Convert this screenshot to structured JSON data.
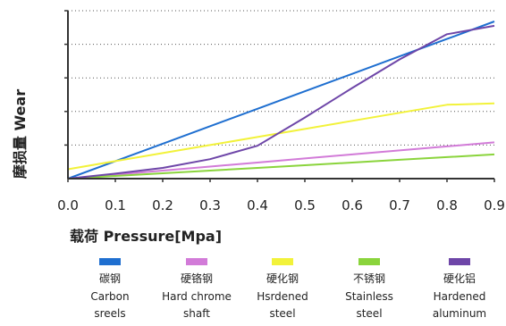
{
  "chart_data": {
    "type": "line",
    "xlabel": "载荷 Pressure[Mpa]",
    "ylabel": "摩损量 Wear",
    "xlim": [
      0.0,
      0.9
    ],
    "x_ticks": [
      "0.0",
      "0.1",
      "0.2",
      "0.3",
      "0.4",
      "0.5",
      "0.6",
      "0.7",
      "0.8",
      "0.9"
    ],
    "ylim": [
      0,
      5
    ],
    "grid": "horizontal-dotted",
    "legend_position": "bottom",
    "x": [
      0.0,
      0.1,
      0.2,
      0.3,
      0.4,
      0.5,
      0.6,
      0.7,
      0.8,
      0.9
    ],
    "series": [
      {
        "name_zh": "碳钢",
        "name": "Carbon sreels",
        "color": "#1f6fd0",
        "values": [
          0.0,
          0.52,
          1.04,
          1.56,
          2.08,
          2.6,
          3.12,
          3.64,
          4.16,
          4.68
        ]
      },
      {
        "name_zh": "硬铬钢",
        "name": "Hard chrome shaft",
        "color": "#d27bd8",
        "values": [
          0.0,
          0.12,
          0.24,
          0.36,
          0.48,
          0.6,
          0.72,
          0.84,
          0.96,
          1.08
        ]
      },
      {
        "name_zh": "硬化钢",
        "name": "Hsrdened steel",
        "color": "#f2f23a",
        "values": [
          0.28,
          0.52,
          0.76,
          1.0,
          1.24,
          1.48,
          1.72,
          1.96,
          2.2,
          2.24
        ]
      },
      {
        "name_zh": "不锈钢",
        "name": "Stainless steel",
        "color": "#8ad43c",
        "values": [
          0.0,
          0.08,
          0.16,
          0.24,
          0.32,
          0.4,
          0.48,
          0.56,
          0.64,
          0.72
        ]
      },
      {
        "name_zh": "硬化铝",
        "name": "Hardened aluminum",
        "color": "#6e46a8",
        "values": [
          0.0,
          0.15,
          0.32,
          0.58,
          0.98,
          1.82,
          2.7,
          3.55,
          4.3,
          4.55
        ]
      }
    ],
    "legend_items": [
      {
        "zh": "碳钢",
        "line1": "Carbon",
        "line2": "sreels"
      },
      {
        "zh": "硬铬钢",
        "line1": "Hard chrome",
        "line2": "shaft"
      },
      {
        "zh": "硬化钢",
        "line1": "Hsrdened",
        "line2": "steel"
      },
      {
        "zh": "不锈钢",
        "line1": "Stainless",
        "line2": "steel"
      },
      {
        "zh": "硬化铝",
        "line1": "Hardened",
        "line2": "aluminum"
      }
    ]
  }
}
